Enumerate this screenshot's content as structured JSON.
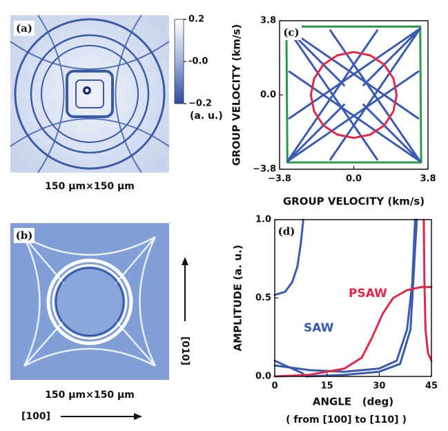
{
  "chart_data": [
    {
      "type": "image",
      "label": "(a)",
      "caption": "150 μm×150 μm",
      "colorbar": {
        "ylim": [
          -0.2,
          0.2
        ],
        "yticks": [
          {
            "value": -0.2,
            "label": "−0.2"
          },
          {
            "value": 0,
            "label": "-0.0"
          },
          0.2
        ],
        "unit": "(a. u.)"
      }
    },
    {
      "type": "image",
      "label": "(b)",
      "caption": "150 μm×150 μm",
      "direction_y": "[010]",
      "direction_x": "[100]"
    },
    {
      "type": "line",
      "label": "(c)",
      "xlabel": "GROUP VELOCITY (km/s)",
      "ylabel": "GROUP VELOCITY (km/s)",
      "xlim": [
        -3.8,
        3.8
      ],
      "ylim": [
        -3.8,
        3.8
      ],
      "xticks": [
        {
          "value": -3.8,
          "label": "−3.8"
        },
        {
          "value": 0,
          "label": "0.0"
        },
        3.8
      ],
      "yticks": [
        {
          "value": -3.8,
          "label": "−3.8"
        },
        {
          "value": 0,
          "label": "0.0"
        },
        3.8
      ],
      "series": [
        {
          "color": "#2a9a4a",
          "x": [
            -3.45,
            3.4,
            3.45,
            -3.4,
            -3.45
          ],
          "values": [
            3.5,
            3.5,
            -3.45,
            -3.45,
            3.5
          ]
        },
        {
          "color": "#3a5ab0",
          "x": [
            -3.4,
            -0.5,
            null,
            0.5,
            3.4,
            null,
            -3.4,
            -0.5,
            null,
            0.5,
            3.4,
            null,
            -3.4,
            1.2,
            null,
            -3.4,
            3.3,
            null,
            3.4,
            -1.2,
            null,
            3.4,
            -3.3,
            null,
            -3.4,
            1.2,
            null,
            -3.4,
            3.3,
            null,
            3.4,
            -1.2,
            null,
            3.4,
            -3.3
          ],
          "values": [
            3.4,
            0.5,
            null,
            -0.5,
            -3.4,
            null,
            -3.4,
            -0.5,
            null,
            0.5,
            3.4,
            null,
            3.4,
            -3.3,
            null,
            3.4,
            -1.2,
            null,
            3.4,
            -3.3,
            null,
            3.4,
            -1.2,
            null,
            -3.4,
            3.3,
            null,
            -3.4,
            1.2,
            null,
            -3.4,
            3.3,
            null,
            -3.4,
            1.2
          ]
        },
        {
          "color": "#e0284a",
          "x": [
            2.2,
            2.03,
            1.56,
            0.84,
            0,
            -0.84,
            -1.56,
            -2.03,
            -2.2,
            -2.03,
            -1.56,
            -0.84,
            0,
            0.84,
            1.56,
            2.03,
            2.2
          ],
          "values": [
            0,
            0.84,
            1.56,
            2.03,
            2.2,
            2.03,
            1.56,
            0.84,
            0,
            -0.84,
            -1.56,
            -2.03,
            -2.2,
            -2.03,
            -1.56,
            -0.84,
            0
          ]
        }
      ]
    },
    {
      "type": "line",
      "label": "(d)",
      "xlabel": "ANGLE   (deg)",
      "note": "( from [100] to [110] )",
      "ylabel": "AMPLITUDE (a. u.)",
      "xlim": [
        0,
        45
      ],
      "ylim": [
        0,
        1
      ],
      "xticks": [
        0,
        15,
        30,
        45
      ],
      "yticks": [
        {
          "value": 0,
          "label": "0.0"
        },
        0.5,
        {
          "value": 1,
          "label": "1.0"
        }
      ],
      "series": [
        {
          "name": "SAW",
          "color": "#3a5ab0",
          "x": [
            0,
            3,
            5,
            6.5,
            7.5,
            8.2,
            null,
            0,
            10,
            20,
            30,
            35,
            38,
            39.5,
            40.3,
            null,
            0,
            4,
            8,
            9,
            null,
            9,
            20,
            30,
            36,
            39,
            40.8
          ],
          "values": [
            0.52,
            0.54,
            0.6,
            0.7,
            0.85,
            1,
            null,
            0.07,
            0.04,
            0.03,
            0.05,
            0.1,
            0.3,
            0.6,
            1,
            null,
            0.1,
            0.06,
            0.02,
            0,
            null,
            0,
            0.01,
            0.03,
            0.08,
            0.3,
            1
          ]
        },
        {
          "name": "PSAW",
          "color": "#e0284a",
          "x": [
            0,
            10,
            20,
            25,
            28,
            31,
            34,
            38,
            42,
            45,
            null,
            42.8,
            43,
            43.3,
            44,
            45
          ],
          "values": [
            0,
            0.01,
            0.05,
            0.12,
            0.25,
            0.4,
            0.5,
            0.55,
            0.57,
            0.57,
            null,
            1,
            0.6,
            0.3,
            0.15,
            0.1
          ]
        }
      ]
    }
  ]
}
